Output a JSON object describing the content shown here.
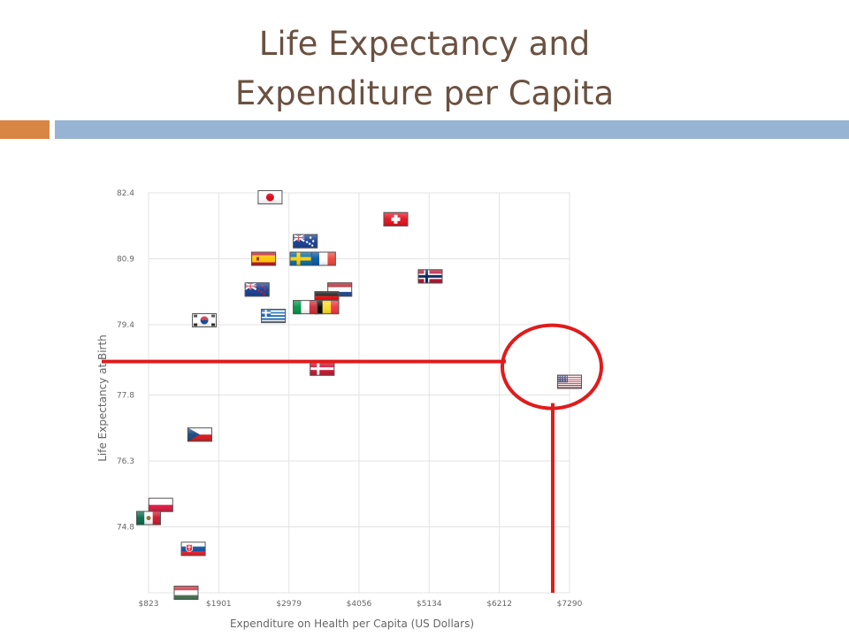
{
  "slide": {
    "title_line1": "Life Expectancy and",
    "title_line2": "Expenditure per Capita"
  },
  "colors": {
    "title": "#6b5141",
    "accent_orange": "#d98544",
    "accent_blue": "#97b4d4",
    "annotation": "#e01b1b",
    "grid": "#e3e3e3",
    "tick_text": "#666666"
  },
  "chart_data": {
    "type": "scatter",
    "title": "",
    "xlabel": "Expenditure on Health per Capita (US Dollars)",
    "ylabel": "Life Expectancy at Birth",
    "x_ticks": [
      823,
      1901,
      2979,
      4056,
      5134,
      6212,
      7290
    ],
    "x_tick_labels": [
      "$823",
      "$1901",
      "$2979",
      "$4056",
      "$5134",
      "$6212",
      "$7290"
    ],
    "y_ticks": [
      74.8,
      76.3,
      77.8,
      79.4,
      80.9,
      82.4
    ],
    "y_tick_labels": [
      "74.8",
      "76.3",
      "77.8",
      "79.4",
      "80.9",
      "82.4"
    ],
    "xlim": [
      823,
      7290
    ],
    "ylim": [
      73.3,
      82.4
    ],
    "grid": true,
    "marker": "country-flag",
    "points": [
      {
        "flag": "japan-flag",
        "x": 2690,
        "y": 82.3
      },
      {
        "flag": "switzerland-flag",
        "x": 4620,
        "y": 81.8
      },
      {
        "flag": "australia-flag",
        "x": 3230,
        "y": 81.3
      },
      {
        "flag": "spain-flag",
        "x": 2590,
        "y": 80.9
      },
      {
        "flag": "sweden-flag",
        "x": 3180,
        "y": 80.9
      },
      {
        "flag": "france-flag",
        "x": 3510,
        "y": 80.9
      },
      {
        "flag": "norway-flag",
        "x": 5150,
        "y": 80.5
      },
      {
        "flag": "new-zealand-flag",
        "x": 2490,
        "y": 80.2
      },
      {
        "flag": "netherlands-flag",
        "x": 3760,
        "y": 80.2
      },
      {
        "flag": "germany-flag",
        "x": 3560,
        "y": 80.0
      },
      {
        "flag": "belgium-flag",
        "x": 3560,
        "y": 79.8
      },
      {
        "flag": "italy-flag",
        "x": 3230,
        "y": 79.8
      },
      {
        "flag": "greece-flag",
        "x": 2740,
        "y": 79.6
      },
      {
        "flag": "korea-flag",
        "x": 1680,
        "y": 79.5
      },
      {
        "flag": "denmark-flag",
        "x": 3490,
        "y": 78.4
      },
      {
        "flag": "united-states-flag",
        "x": 7290,
        "y": 78.1
      },
      {
        "flag": "czech-republic-flag",
        "x": 1610,
        "y": 76.9
      },
      {
        "flag": "poland-flag",
        "x": 1010,
        "y": 75.3
      },
      {
        "flag": "mexico-flag",
        "x": 823,
        "y": 75.0
      },
      {
        "flag": "slovakia-flag",
        "x": 1510,
        "y": 74.3
      },
      {
        "flag": "hungary-flag",
        "x": 1400,
        "y": 73.3
      }
    ],
    "annotations": {
      "highlight": "united-states-flag",
      "shapes": [
        "red-ellipse-around-highlight",
        "red-horizontal-line-at-highlight-y",
        "red-vertical-line-at-highlight-x"
      ]
    }
  }
}
